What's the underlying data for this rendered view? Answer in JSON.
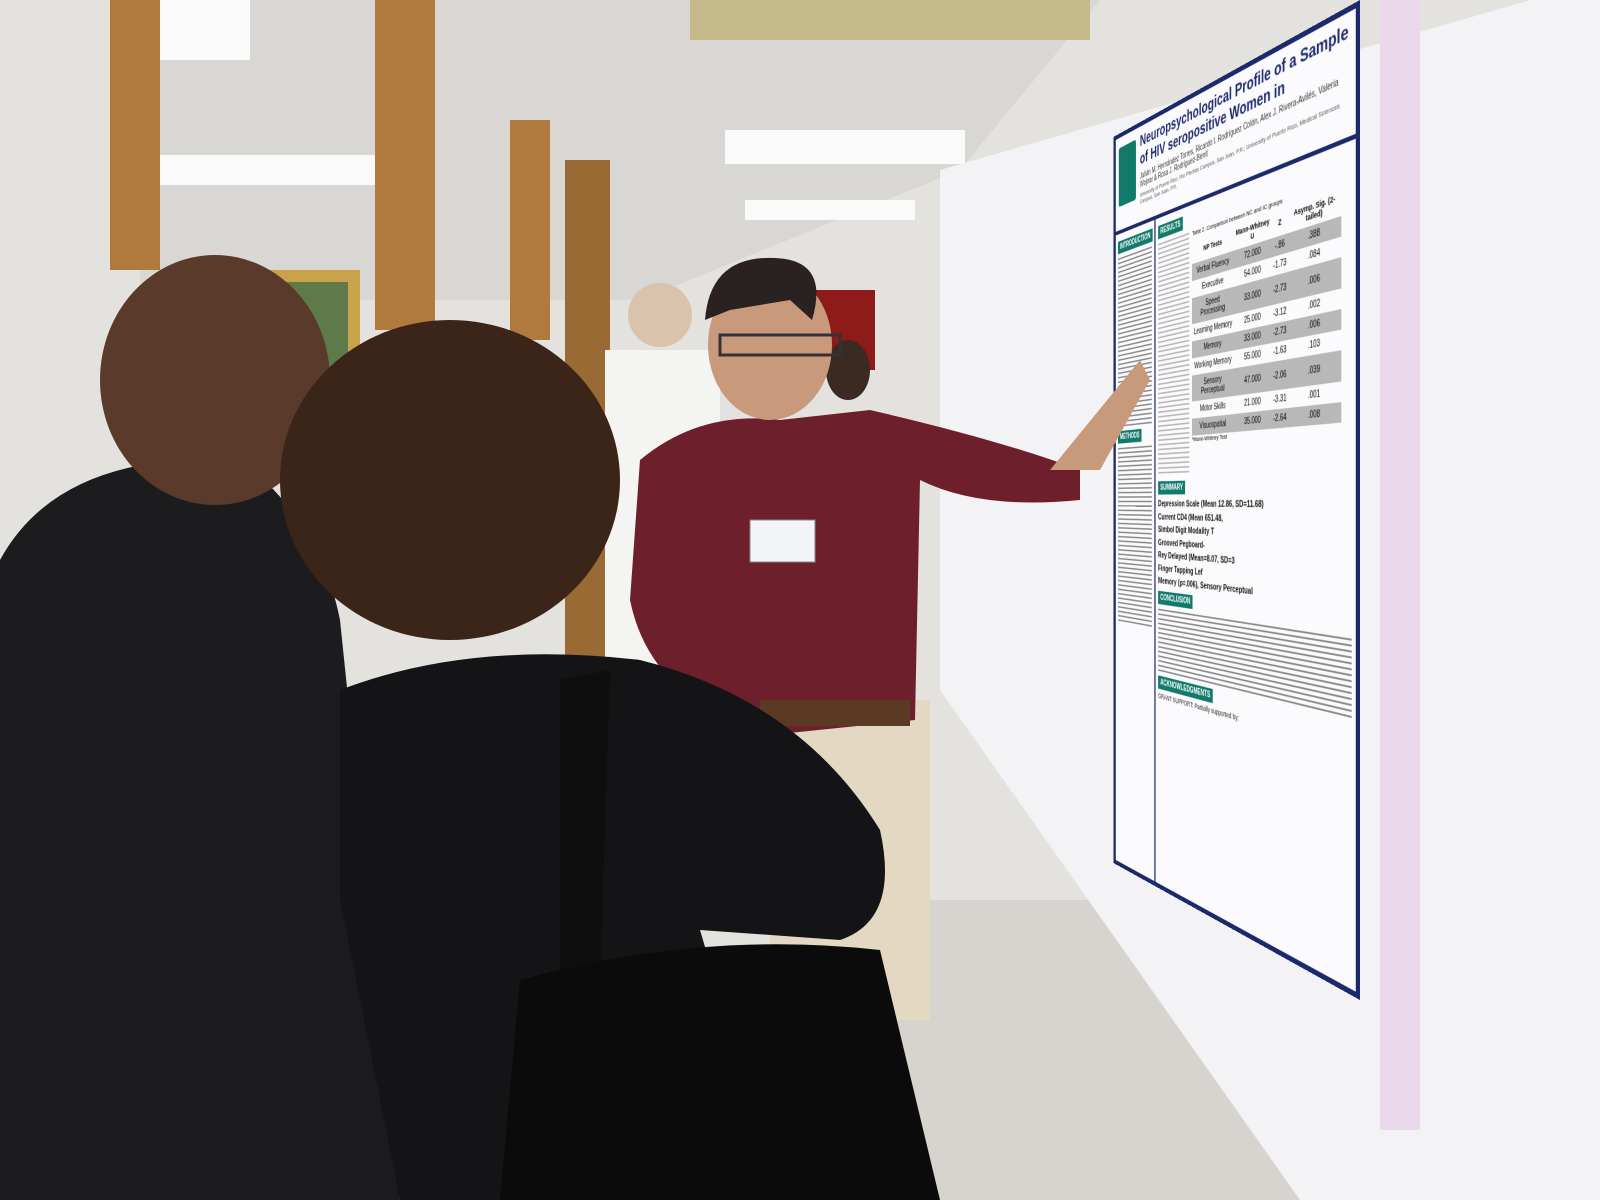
{
  "poster": {
    "title": "Neuropsychological Profile of a Sample of HIV seropositive Women in",
    "authors": "Julián M. Hernández Torres, Ricardo I. Rodríguez Colón, Alex J. Rivera-Avilés, Valeria Wojnar & Rosa J. Rodríguez-Benit",
    "affiliation": "University of Puerto Rico, Río Piedras Campus, San Juan, P.R.; University of Puerto Rico, Medical Sciences Campus, San Juan, P.R.",
    "sections": {
      "introduction": "INTRODUCTION",
      "results": "RESULTS",
      "methods": "METHODS",
      "summary": "SUMMARY",
      "conclusion": "CONCLUSION",
      "acknowledgments": "ACKNOWLEDGMENTS"
    },
    "table2": {
      "caption": "Table 2. Comparison between NC and IC groups",
      "headers": [
        "NP Tests",
        "Mann-Whitney U",
        "Z",
        "Asymp. Sig. (2-tailed)"
      ],
      "rows": [
        [
          "Verbal Fluency",
          "72.000",
          "-.86",
          ".388"
        ],
        [
          "Executive",
          "54.000",
          "-1.73",
          ".084"
        ],
        [
          "Speed Processing",
          "33.000",
          "-2.73",
          ".006"
        ],
        [
          "Learning Memory",
          "25.000",
          "-3.12",
          ".002"
        ],
        [
          "Memory",
          "33.000",
          "-2.73",
          ".006"
        ],
        [
          "Working Memory",
          "55.000",
          "-1.63",
          ".103"
        ],
        [
          "Sensory Perceptual",
          "47.000",
          "-2.06",
          ".039"
        ],
        [
          "Motor Skills",
          "21.000",
          "-3.31",
          ".001"
        ],
        [
          "Visuospatial",
          "35.000",
          "-2.64",
          ".008"
        ]
      ],
      "footnote": "*Mann-Whitney Test"
    },
    "summary_lines": [
      "Depression Scale (Mean 12.86, SD=11.68)",
      "Current CD4 (Mean 651.48,",
      "Simbol Digit Modality T",
      "Grooved Pegboard-",
      "Rey Delayed (Mean=8.07, SD=3",
      "Finger Tapping Lef",
      "Memory (p=.006), Sensory Perceptual"
    ],
    "acknowledgments": "GRANT SUPPORT: Partially supported by:"
  }
}
